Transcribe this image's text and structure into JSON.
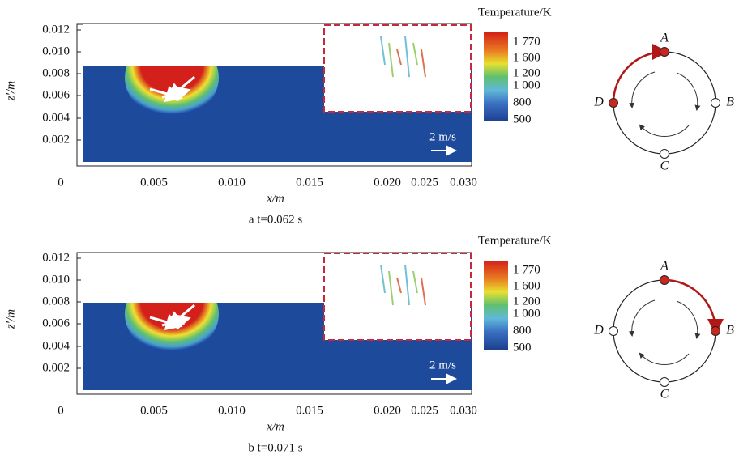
{
  "panels": [
    {
      "y_axis_label": "z′/m",
      "y_ticks": [
        "0.012",
        "0.010",
        "0.008",
        "0.006",
        "0.004",
        "0.002"
      ],
      "x_ticks": [
        "0",
        "0.005",
        "0.010",
        "0.015",
        "0.020",
        "0.025",
        "0.030"
      ],
      "x_axis_label": "x/m",
      "velocity_scale": "2 m/s",
      "colorbar": {
        "title": "Temperature/K",
        "labels": [
          "1 770",
          "1 600",
          "1 200",
          "1 000",
          "800",
          "500"
        ]
      },
      "caption": "a  t=0.062 s",
      "cycle": {
        "labels": [
          "A",
          "B",
          "C",
          "D"
        ],
        "active": [
          "A",
          "D"
        ]
      }
    },
    {
      "y_axis_label": "z′/m",
      "y_ticks": [
        "0.012",
        "0.010",
        "0.008",
        "0.006",
        "0.004",
        "0.002"
      ],
      "x_ticks": [
        "0",
        "0.005",
        "0.010",
        "0.015",
        "0.020",
        "0.025",
        "0.030"
      ],
      "x_axis_label": "x/m",
      "velocity_scale": "2 m/s",
      "colorbar": {
        "title": "Temperature/K",
        "labels": [
          "1 770",
          "1 600",
          "1 200",
          "1 000",
          "800",
          "500"
        ]
      },
      "caption": "b  t=0.071 s",
      "cycle": {
        "labels": [
          "A",
          "B",
          "C",
          "D"
        ],
        "active": [
          "A",
          "B"
        ]
      }
    }
  ]
}
